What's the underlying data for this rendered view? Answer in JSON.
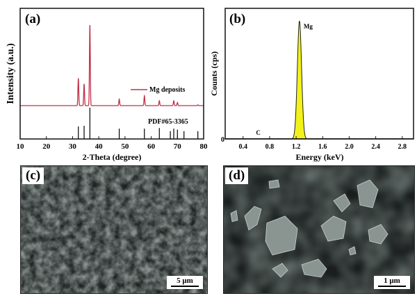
{
  "chart_data": [
    {
      "type": "line",
      "panel_label": "(a)",
      "xlabel": "2-Theta (degree)",
      "ylabel": "Intensity (a.u.)",
      "xlim": [
        10,
        80
      ],
      "xticks": [
        10,
        20,
        30,
        40,
        50,
        60,
        70,
        80
      ],
      "legend": {
        "entry": "Mg deposits",
        "placement": "center-right"
      },
      "series": [
        {
          "name": "Mg deposits",
          "color": "#c0304a",
          "peaks": [
            {
              "two_theta": 32.2,
              "relative_intensity": 34
            },
            {
              "two_theta": 34.4,
              "relative_intensity": 27
            },
            {
              "two_theta": 36.6,
              "relative_intensity": 100
            },
            {
              "two_theta": 47.8,
              "relative_intensity": 8
            },
            {
              "two_theta": 57.4,
              "relative_intensity": 12
            },
            {
              "two_theta": 63.1,
              "relative_intensity": 6
            },
            {
              "two_theta": 68.6,
              "relative_intensity": 6
            },
            {
              "two_theta": 70.0,
              "relative_intensity": 4
            },
            {
              "two_theta": 77.8,
              "relative_intensity": 1
            }
          ]
        }
      ],
      "reference": {
        "label": "PDF#65-3365",
        "color": "#000000",
        "lines": [
          {
            "two_theta": 32.2,
            "relative_intensity": 40
          },
          {
            "two_theta": 34.4,
            "relative_intensity": 42
          },
          {
            "two_theta": 36.6,
            "relative_intensity": 100
          },
          {
            "two_theta": 47.8,
            "relative_intensity": 33
          },
          {
            "two_theta": 57.4,
            "relative_intensity": 33
          },
          {
            "two_theta": 63.1,
            "relative_intensity": 35
          },
          {
            "two_theta": 67.3,
            "relative_intensity": 25
          },
          {
            "two_theta": 68.6,
            "relative_intensity": 33
          },
          {
            "two_theta": 70.0,
            "relative_intensity": 30
          },
          {
            "two_theta": 72.5,
            "relative_intensity": 25
          },
          {
            "two_theta": 77.8,
            "relative_intensity": 25
          }
        ]
      }
    },
    {
      "type": "area",
      "panel_label": "(b)",
      "xlabel": "Energy (keV)",
      "ylabel": "Counts (cps)",
      "xlim": [
        0.13,
        2.97
      ],
      "xticks": [
        "0.4",
        "0.8",
        "1.2",
        "1.6",
        "2.0",
        "2.4",
        "2.8"
      ],
      "yticks": [
        "0"
      ],
      "fill_color": "#f2f21a",
      "peaks": [
        {
          "label": "Mg",
          "energy": 1.25,
          "relative_height": 1.0
        },
        {
          "label": "C",
          "energy": 0.28,
          "relative_height": 0.005
        }
      ]
    }
  ],
  "images": [
    {
      "panel_label": "(c)",
      "scale_bar": "5 μm"
    },
    {
      "panel_label": "(d)",
      "scale_bar": "1 μm"
    }
  ]
}
